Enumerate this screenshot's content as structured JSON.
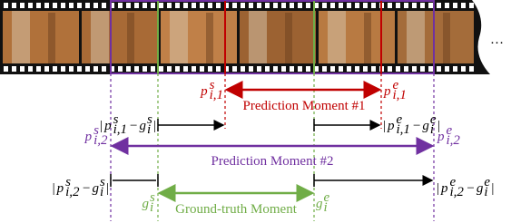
{
  "ellipsis": "…",
  "prediction1": {
    "label": "Prediction Moment #1",
    "start": {
      "base": "p",
      "sup": "s",
      "sub": "i,1"
    },
    "end": {
      "base": "p",
      "sup": "e",
      "sub": "i,1"
    }
  },
  "prediction2": {
    "label": "Prediction Moment #2",
    "start": {
      "base": "p",
      "sup": "s",
      "sub": "i,2"
    },
    "end": {
      "base": "p",
      "sup": "e",
      "sub": "i,2"
    }
  },
  "ground_truth": {
    "label": "Ground-truth Moment",
    "start": {
      "base": "g",
      "sup": "s",
      "sub": "i"
    },
    "end": {
      "base": "g",
      "sup": "e",
      "sub": "i"
    }
  },
  "diffs": [
    {
      "open": "|",
      "a": {
        "base": "p",
        "sup": "s",
        "sub": "i,1"
      },
      "op": "−",
      "b": {
        "base": "g",
        "sup": "s",
        "sub": "i"
      },
      "close": "|"
    },
    {
      "open": "|",
      "a": {
        "base": "p",
        "sup": "e",
        "sub": "i,1"
      },
      "op": "−",
      "b": {
        "base": "g",
        "sup": "e",
        "sub": "i"
      },
      "close": "|"
    },
    {
      "open": "|",
      "a": {
        "base": "p",
        "sup": "s",
        "sub": "i,2"
      },
      "op": "−",
      "b": {
        "base": "g",
        "sup": "s",
        "sub": "i"
      },
      "close": "|"
    },
    {
      "open": "|",
      "a": {
        "base": "p",
        "sup": "e",
        "sub": "i,2"
      },
      "op": "−",
      "b": {
        "base": "g",
        "sup": "e",
        "sub": "i"
      },
      "close": "|"
    }
  ]
}
